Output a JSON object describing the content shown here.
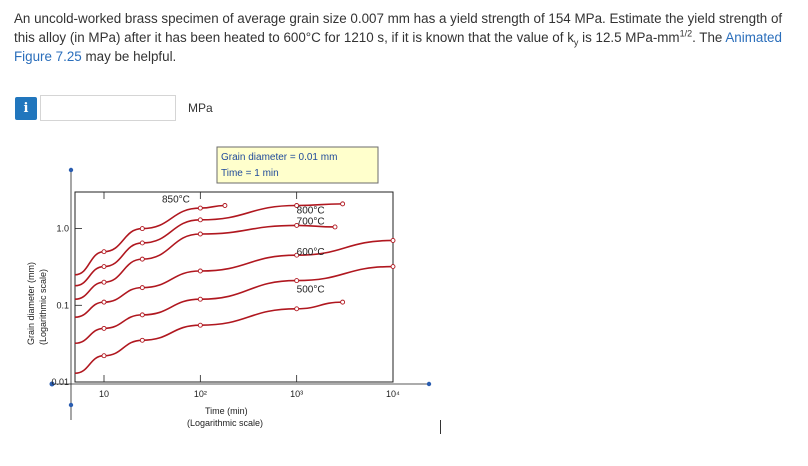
{
  "question": {
    "p1": "An uncold-worked brass specimen of average grain size 0.007 mm has a yield strength of 154 MPa. Estimate the yield strength of this alloy (in MPa) after it has been heated to 600°C for 1210 s, if it is known that the value of k",
    "sub_y": "y",
    "p2": " is 12.5 MPa-mm",
    "sup_half": "1/2",
    "p3": ". The ",
    "link": "Animated Figure 7.25",
    "p4": " may be helpful."
  },
  "answer": {
    "info_icon": "i",
    "value": "",
    "unit": "MPa"
  },
  "chart_data": {
    "type": "line",
    "xscale": "log",
    "yscale": "log",
    "xlim": [
      5,
      10000
    ],
    "ylim": [
      0.01,
      3
    ],
    "xlabel": "Time (min)",
    "xlabel2": "(Logarithmic scale)",
    "ylabel": "Grain diameter (mm)",
    "ylabel2": "(Logarithmic scale)",
    "xticks": [
      "10",
      "10²",
      "10³",
      "10⁴"
    ],
    "yticks": [
      "0.01",
      "0.1",
      "1.0"
    ],
    "annotation_box": [
      "Grain diameter = 0.01 mm",
      "Time = 1 min"
    ],
    "series": [
      {
        "name": "850°C",
        "x": [
          5,
          10,
          25,
          100,
          180
        ],
        "y": [
          0.25,
          0.5,
          1.0,
          1.85,
          2.0
        ]
      },
      {
        "name": "800°C",
        "x": [
          5,
          10,
          25,
          100,
          1000,
          3000
        ],
        "y": [
          0.18,
          0.32,
          0.65,
          1.3,
          2.0,
          2.1
        ]
      },
      {
        "name": "700°C",
        "x": [
          5,
          10,
          25,
          100,
          1000,
          2500
        ],
        "y": [
          0.12,
          0.2,
          0.4,
          0.85,
          1.1,
          1.05
        ]
      },
      {
        "name": "600°C",
        "x": [
          5,
          10,
          25,
          100,
          1000,
          10000
        ],
        "y": [
          0.07,
          0.11,
          0.17,
          0.28,
          0.45,
          0.7
        ]
      },
      {
        "name": "500°C",
        "x": [
          5,
          10,
          25,
          100,
          1000,
          10000
        ],
        "y": [
          0.032,
          0.05,
          0.075,
          0.12,
          0.21,
          0.32
        ]
      },
      {
        "name": "",
        "x": [
          5,
          10,
          25,
          100,
          1000,
          3000
        ],
        "y": [
          0.013,
          0.022,
          0.035,
          0.055,
          0.09,
          0.11
        ]
      }
    ],
    "colors": {
      "curve": "#b0171f",
      "box_fill": "#ffffcc",
      "box_border": "#6b6b6b",
      "axis_point": "#2a5db0"
    }
  }
}
